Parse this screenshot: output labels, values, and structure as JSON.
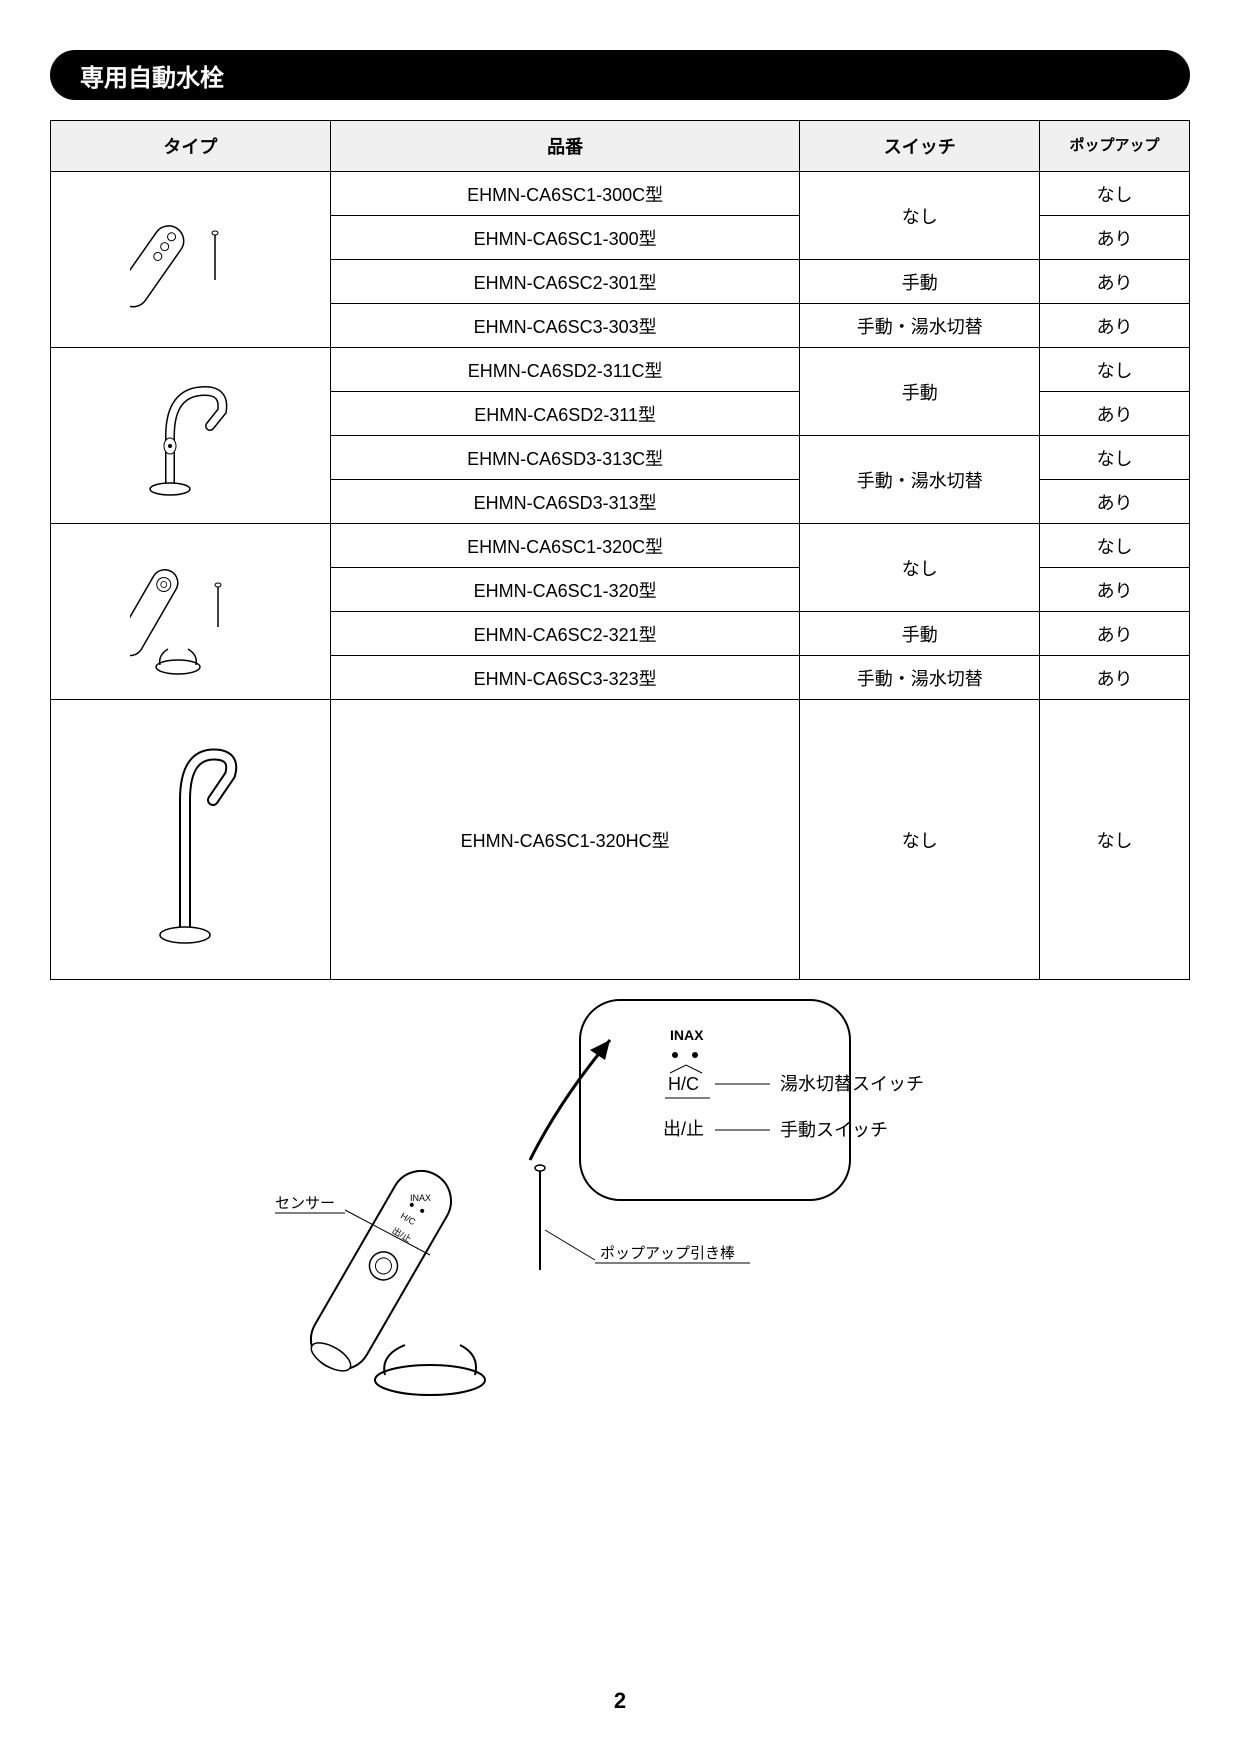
{
  "header": {
    "title": "専用自動水栓"
  },
  "table": {
    "columns": [
      "タイプ",
      "品番",
      "スイッチ",
      "ポップアップ"
    ],
    "groups": [
      {
        "icon_type": "angled_faucet",
        "rows": [
          {
            "part": "EHMN-CA6SC1-300C型",
            "switch": "なし",
            "switch_rowspan": 2,
            "popup": "なし"
          },
          {
            "part": "EHMN-CA6SC1-300型",
            "switch": null,
            "popup": "あり"
          },
          {
            "part": "EHMN-CA6SC2-301型",
            "switch": "手動",
            "switch_rowspan": 1,
            "popup": "あり"
          },
          {
            "part": "EHMN-CA6SC3-303型",
            "switch": "手動・湯水切替",
            "switch_rowspan": 1,
            "popup": "あり"
          }
        ]
      },
      {
        "icon_type": "curved_faucet_sensor",
        "rows": [
          {
            "part": "EHMN-CA6SD2-311C型",
            "switch": "手動",
            "switch_rowspan": 2,
            "popup": "なし"
          },
          {
            "part": "EHMN-CA6SD2-311型",
            "switch": null,
            "popup": "あり"
          },
          {
            "part": "EHMN-CA6SD3-313C型",
            "switch": "手動・湯水切替",
            "switch_rowspan": 2,
            "popup": "なし"
          },
          {
            "part": "EHMN-CA6SD3-313型",
            "switch": null,
            "popup": "あり"
          }
        ]
      },
      {
        "icon_type": "curved_short_faucet",
        "rows": [
          {
            "part": "EHMN-CA6SC1-320C型",
            "switch": "なし",
            "switch_rowspan": 2,
            "popup": "なし"
          },
          {
            "part": "EHMN-CA6SC1-320型",
            "switch": null,
            "popup": "あり"
          },
          {
            "part": "EHMN-CA6SC2-321型",
            "switch": "手動",
            "switch_rowspan": 1,
            "popup": "あり"
          },
          {
            "part": "EHMN-CA6SC3-323型",
            "switch": "手動・湯水切替",
            "switch_rowspan": 1,
            "popup": "あり"
          }
        ]
      },
      {
        "icon_type": "curved_tall_faucet",
        "rows": [
          {
            "part": "EHMN-CA6SC1-320HC型",
            "switch": "なし",
            "switch_rowspan": 1,
            "popup": "なし",
            "tall": true
          }
        ]
      }
    ]
  },
  "diagram": {
    "brand_label": "INAX",
    "hc_label": "H/C",
    "start_stop_label": "出/止",
    "hot_cold_switch_label": "湯水切替スイッチ",
    "manual_switch_label": "手動スイッチ",
    "sensor_label": "センサー",
    "popup_rod_label": "ポップアップ引き棒"
  },
  "page_number": "2",
  "colors": {
    "header_bg": "#000000",
    "header_text": "#ffffff",
    "th_bg": "#f0f0f0",
    "border": "#000000",
    "text": "#000000"
  }
}
